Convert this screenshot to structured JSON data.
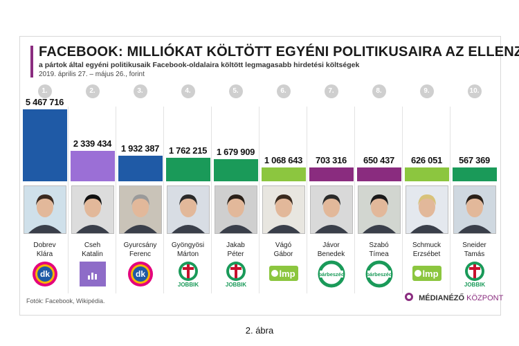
{
  "title": "FACEBOOK: MILLIÓKAT KÖLTÖTT EGYÉNI POLITIKUSAIRA AZ ELLENZÉK",
  "subtitle": "a pártok által egyéni politikusaik Facebook-oldalaira költött legmagasabb hirdetési költségek",
  "period": "2019. április 27. – május 26., forint",
  "source": "Fotók: Facebook, Wikipédia.",
  "brand": {
    "part1": "MÉDIANÉZŐ",
    "part2": "KÖZPONT"
  },
  "caption": "2. ábra",
  "colors": {
    "dk": "#1f5aa6",
    "momentum": "#9b6fd6",
    "jobbik": "#1a9a59",
    "lmp": "#8cc63f",
    "parbeszed": "#8a2c7f",
    "accent": "#8a2c7f"
  },
  "chart_data": {
    "type": "bar",
    "ylim": [
      0,
      5467716
    ],
    "categories": [
      "Dobrev Klára",
      "Cseh Katalin",
      "Gyurcsány Ferenc",
      "Gyöngyösi Márton",
      "Jakab Péter",
      "Vágó Gábor",
      "Jávor Benedek",
      "Szabó Tímea",
      "Schmuck Erzsébet",
      "Sneider Tamás"
    ],
    "values": [
      5467716,
      2339434,
      1932387,
      1762215,
      1679909,
      1068643,
      703316,
      650437,
      626051,
      567369
    ],
    "items": [
      {
        "rank": "1.",
        "value_label": "5 467 716",
        "value": 5467716,
        "first": "Dobrev",
        "last": "Klára",
        "party": "dk",
        "color": "#1f5aa6"
      },
      {
        "rank": "2.",
        "value_label": "2 339 434",
        "value": 2339434,
        "first": "Cseh",
        "last": "Katalin",
        "party": "momentum",
        "color": "#9b6fd6"
      },
      {
        "rank": "3.",
        "value_label": "1 932 387",
        "value": 1932387,
        "first": "Gyurcsány",
        "last": "Ferenc",
        "party": "dk",
        "color": "#1f5aa6"
      },
      {
        "rank": "4.",
        "value_label": "1 762 215",
        "value": 1762215,
        "first": "Gyöngyösi",
        "last": "Márton",
        "party": "jobbik",
        "color": "#1a9a59"
      },
      {
        "rank": "5.",
        "value_label": "1 679 909",
        "value": 1679909,
        "first": "Jakab",
        "last": "Péter",
        "party": "jobbik",
        "color": "#1a9a59"
      },
      {
        "rank": "6.",
        "value_label": "1 068 643",
        "value": 1068643,
        "first": "Vágó",
        "last": "Gábor",
        "party": "lmp",
        "color": "#8cc63f"
      },
      {
        "rank": "7.",
        "value_label": "703 316",
        "value": 703316,
        "first": "Jávor",
        "last": "Benedek",
        "party": "parbeszed",
        "color": "#8a2c7f"
      },
      {
        "rank": "8.",
        "value_label": "650 437",
        "value": 650437,
        "first": "Szabó",
        "last": "Tímea",
        "party": "parbeszed",
        "color": "#8a2c7f"
      },
      {
        "rank": "9.",
        "value_label": "626 051",
        "value": 626051,
        "first": "Schmuck",
        "last": "Erzsébet",
        "party": "lmp",
        "color": "#8cc63f"
      },
      {
        "rank": "10.",
        "value_label": "567 369",
        "value": 567369,
        "first": "Sneider",
        "last": "Tamás",
        "party": "jobbik",
        "color": "#1a9a59"
      }
    ]
  },
  "party_labels": {
    "dk": "dk",
    "lmp": "lmp",
    "jobbik": "JOBBIK",
    "parbeszed": "párbeszéd"
  }
}
